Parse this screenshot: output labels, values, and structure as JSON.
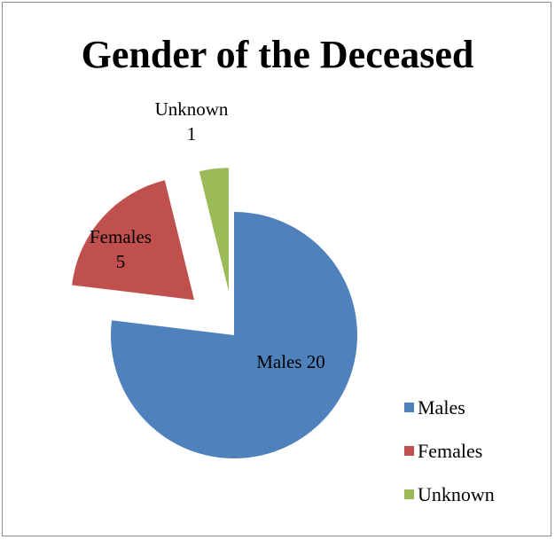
{
  "chart_data": {
    "type": "pie",
    "title": "Gender of the Deceased",
    "categories": [
      "Males",
      "Females",
      "Unknown"
    ],
    "values": [
      20,
      5,
      1
    ],
    "colors": [
      "#4f81bd",
      "#c0504d",
      "#9bbb59"
    ],
    "exploded": true,
    "data_labels": [
      {
        "name": "Males",
        "value": "20"
      },
      {
        "name": "Females",
        "value": "5"
      },
      {
        "name": "Unknown",
        "value": "1"
      }
    ],
    "legend": {
      "position": "bottom-right",
      "items": [
        "Males",
        "Females",
        "Unknown"
      ]
    }
  }
}
